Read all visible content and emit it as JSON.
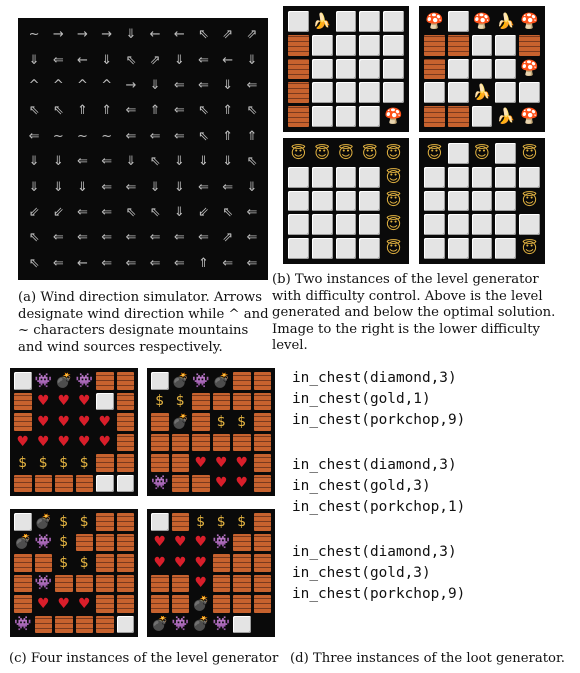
{
  "wind": {
    "rows": [
      "~→→→⇓←←⇖⇗⇗",
      "⇓⇐←⇓⇖⇗⇓⇐←⇓",
      "^^^^→⇓⇐⇐⇓⇐",
      "⇖⇖⇑⇑⇐⇑⇐⇖⇑⇖",
      "⇐~~~⇐⇐⇐⇖⇑⇑",
      "⇓⇓⇐⇐⇓⇖⇓⇓⇓⇖",
      "⇓⇓⇓⇐⇐⇓⇓⇐⇐⇓",
      "⇙⇙⇐⇐⇖⇖⇓⇙⇖⇐",
      "⇖⇐⇐⇐⇐⇐⇐⇐⇗⇐",
      "⇖⇐←⇐⇐⇐⇐⇑⇐⇐"
    ],
    "caption": "(a) Wind direction simulator. Arrows designate wind direction while ^ and ~ characters designate mountains and wind sources respectively."
  },
  "level_b": {
    "grids": [
      {
        "rows": [
          "W🍌WWW",
          "BWWWW",
          "BWWWW",
          "BWWWW",
          "BWWW🍄"
        ]
      },
      {
        "rows": [
          "🍄W🍄🍌🍄",
          "BBWWB",
          "BWWW🍄",
          "WW🍌WW",
          "BBW🍌🍄"
        ]
      },
      {
        "rows": [
          "😇😇😇😇😇",
          "WWWW😇",
          "WWWW😇",
          "WWWW😇",
          "WWWW😇"
        ]
      },
      {
        "rows": [
          "😇W😇W😇",
          "WWWWW",
          "WWWW😇",
          "WWWWW",
          "WWWW😇"
        ]
      }
    ],
    "caption": "(b) Two instances of the level generator with difficulty control. Above is the level generated and below the optimal solution. Image to the right is the lower difficulty level."
  },
  "level_c": {
    "grids": [
      {
        "rows": [
          "W👾💣👾BB",
          "B♥♥♥WB",
          "B♥♥♥♥B",
          "♥♥♥♥♥B",
          "$$$$BB",
          "BBBBWW"
        ]
      },
      {
        "rows": [
          "W💣👾💣BB",
          "$$BBBB",
          "B💣B$$B",
          "BBBBBB",
          "BB♥♥♥B",
          "👾BB♥♥B"
        ]
      },
      {
        "rows": [
          "W💣$$BB",
          "💣👾$BBB",
          "BB$$BB",
          "B👾BBBB",
          "B♥♥♥BB",
          "👾BBBBW"
        ]
      },
      {
        "rows": [
          "WB$$$B",
          "♥♥♥👾BB",
          "♥♥♥BB",
          "BBB♥BB",
          "BBB💣BB",
          "B💣👾💣👾W"
        ]
      }
    ],
    "caption": "(c) Four instances of the level generator"
  },
  "loot": {
    "groups": [
      [
        "in_chest(diamond,3)",
        "in_chest(gold,1)",
        "in_chest(porkchop,9)"
      ],
      [
        "in_chest(diamond,3)",
        "in_chest(gold,3)",
        "in_chest(porkchop,1)"
      ],
      [
        "in_chest(diamond,3)",
        "in_chest(gold,3)",
        "in_chest(porkchop,9)"
      ]
    ],
    "caption": "(d) Three instances of the loot generator."
  }
}
